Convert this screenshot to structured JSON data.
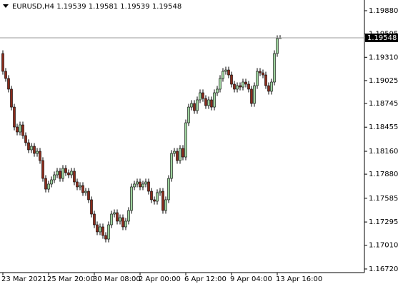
{
  "chart_data": {
    "type": "candlestick",
    "symbol": "EURUSD,H4",
    "up_color": "#9fd49f",
    "down_color": "#8b2a1a",
    "ylim": [
      1.16676,
      1.20011
    ],
    "yticks": [
      {
        "value": 1.1988,
        "label": "1.19880"
      },
      {
        "value": 1.19595,
        "label": "1.19595"
      },
      {
        "value": 1.1931,
        "label": "1.19310"
      },
      {
        "value": 1.19025,
        "label": "1.19025"
      },
      {
        "value": 1.18745,
        "label": "1.18745"
      },
      {
        "value": 1.18455,
        "label": "1.18455"
      },
      {
        "value": 1.1816,
        "label": "1.18160"
      },
      {
        "value": 1.1788,
        "label": "1.17880"
      },
      {
        "value": 1.17585,
        "label": "1.17585"
      },
      {
        "value": 1.17295,
        "label": "1.17295"
      },
      {
        "value": 1.1701,
        "label": "1.17010"
      },
      {
        "value": 1.1672,
        "label": "1.16720"
      }
    ],
    "xticks": [
      {
        "value": 0,
        "label": "23 Mar 2021"
      },
      {
        "value": 16,
        "label": "25 Mar 20:00"
      },
      {
        "value": 32,
        "label": "30 Mar 08:00"
      },
      {
        "value": 48,
        "label": "2 Apr 00:00"
      },
      {
        "value": 64,
        "label": "6 Apr 12:00"
      },
      {
        "value": 80,
        "label": "9 Apr 04:00"
      },
      {
        "value": 96,
        "label": "13 Apr 16:00"
      }
    ],
    "open": [
      1.19356,
      1.19138,
      1.19051,
      1.1892,
      1.18701,
      1.18457,
      1.18396,
      1.18483,
      1.18352,
      1.18265,
      1.18178,
      1.18221,
      1.18134,
      1.1816,
      1.18047,
      1.17828,
      1.17697,
      1.17759,
      1.17811,
      1.17872,
      1.17916,
      1.17828,
      1.17951,
      1.17898,
      1.17872,
      1.17916,
      1.17785,
      1.17724,
      1.17741,
      1.17654,
      1.17671,
      1.17567,
      1.17392,
      1.17261,
      1.17174,
      1.17235,
      1.1713,
      1.17086,
      1.17261,
      1.17392,
      1.17409,
      1.17305,
      1.17348,
      1.17235,
      1.17305,
      1.17436,
      1.17724,
      1.17759,
      1.17785,
      1.17724,
      1.17759,
      1.17785,
      1.17671,
      1.17567,
      1.17549,
      1.17654,
      1.17671,
      1.17436,
      1.17567,
      1.17828,
      1.18134,
      1.1816,
      1.18047,
      1.18195,
      1.1809,
      1.18509,
      1.18701,
      1.18745,
      1.18658,
      1.18789,
      1.18876,
      1.18806,
      1.18719,
      1.18789,
      1.18701,
      1.18876,
      1.1892,
      1.19051,
      1.19138,
      1.19155,
      1.19094,
      1.18981,
      1.1892,
      1.18963,
      1.18946,
      1.19007,
      1.18981,
      1.1892,
      1.18745,
      1.18963,
      1.19138,
      1.1912,
      1.19094,
      1.18963,
      1.18894,
      1.19007,
      1.19356,
      1.19539
    ],
    "high": [
      1.19396,
      1.19178,
      1.19091,
      1.1896,
      1.18741,
      1.18497,
      1.18523,
      1.18523,
      1.18392,
      1.18305,
      1.18261,
      1.18261,
      1.182,
      1.182,
      1.18087,
      1.17868,
      1.17799,
      1.17851,
      1.17912,
      1.17956,
      1.17956,
      1.17991,
      1.17991,
      1.17938,
      1.17956,
      1.17956,
      1.17825,
      1.17781,
      1.17781,
      1.17711,
      1.17711,
      1.17607,
      1.17432,
      1.17301,
      1.17275,
      1.17275,
      1.1717,
      1.17301,
      1.17432,
      1.17449,
      1.17449,
      1.17388,
      1.17388,
      1.17345,
      1.17476,
      1.17764,
      1.17799,
      1.17825,
      1.17825,
      1.17799,
      1.17825,
      1.17825,
      1.17711,
      1.17607,
      1.17694,
      1.17711,
      1.17711,
      1.17607,
      1.17868,
      1.18174,
      1.182,
      1.182,
      1.18235,
      1.18235,
      1.18549,
      1.18741,
      1.18785,
      1.18785,
      1.18829,
      1.18916,
      1.18916,
      1.18846,
      1.18829,
      1.18829,
      1.18916,
      1.1896,
      1.19091,
      1.19178,
      1.19195,
      1.19195,
      1.19134,
      1.19021,
      1.19003,
      1.19003,
      1.19047,
      1.19047,
      1.19021,
      1.1896,
      1.19003,
      1.19178,
      1.19178,
      1.1916,
      1.19134,
      1.19003,
      1.19047,
      1.19396,
      1.19579,
      1.19581
    ],
    "low": [
      1.19098,
      1.19011,
      1.1888,
      1.18661,
      1.18417,
      1.18356,
      1.18356,
      1.18312,
      1.18225,
      1.18138,
      1.18138,
      1.18094,
      1.18094,
      1.18007,
      1.17788,
      1.17657,
      1.17657,
      1.17719,
      1.17771,
      1.17832,
      1.17788,
      1.17788,
      1.17858,
      1.17832,
      1.17832,
      1.17745,
      1.17684,
      1.17684,
      1.17614,
      1.17614,
      1.17527,
      1.17352,
      1.17221,
      1.17134,
      1.17134,
      1.1709,
      1.17046,
      1.17046,
      1.17221,
      1.17352,
      1.17265,
      1.17265,
      1.17195,
      1.17195,
      1.17265,
      1.17396,
      1.17684,
      1.17719,
      1.17684,
      1.17684,
      1.17719,
      1.17631,
      1.17527,
      1.17509,
      1.17509,
      1.17614,
      1.17396,
      1.17396,
      1.17527,
      1.17788,
      1.18094,
      1.18007,
      1.18007,
      1.1805,
      1.1805,
      1.18469,
      1.18661,
      1.18618,
      1.18618,
      1.18749,
      1.18766,
      1.18679,
      1.18679,
      1.18661,
      1.18661,
      1.18836,
      1.1888,
      1.19011,
      1.19098,
      1.19054,
      1.18941,
      1.1888,
      1.1888,
      1.18906,
      1.18906,
      1.18941,
      1.1888,
      1.18705,
      1.18705,
      1.18923,
      1.1908,
      1.19054,
      1.18923,
      1.18854,
      1.18854,
      1.18967,
      1.19316,
      1.19539
    ],
    "close": [
      1.19138,
      1.19051,
      1.1892,
      1.18701,
      1.18457,
      1.18396,
      1.18483,
      1.18352,
      1.18265,
      1.18178,
      1.18221,
      1.18134,
      1.1816,
      1.18047,
      1.17828,
      1.17697,
      1.17759,
      1.17811,
      1.17872,
      1.17916,
      1.17828,
      1.17951,
      1.17898,
      1.17872,
      1.17916,
      1.17785,
      1.17724,
      1.17741,
      1.17654,
      1.17671,
      1.17567,
      1.17392,
      1.17261,
      1.17174,
      1.17235,
      1.1713,
      1.17086,
      1.17261,
      1.17392,
      1.17409,
      1.17305,
      1.17348,
      1.17235,
      1.17305,
      1.17436,
      1.17724,
      1.17759,
      1.17785,
      1.17724,
      1.17759,
      1.17785,
      1.17671,
      1.17567,
      1.17549,
      1.17654,
      1.17671,
      1.17436,
      1.17567,
      1.17828,
      1.18134,
      1.1816,
      1.18047,
      1.18195,
      1.1809,
      1.18509,
      1.18701,
      1.18745,
      1.18658,
      1.18789,
      1.18876,
      1.18806,
      1.18719,
      1.18789,
      1.18701,
      1.18876,
      1.1892,
      1.19051,
      1.19138,
      1.19155,
      1.19094,
      1.18981,
      1.1892,
      1.18963,
      1.18946,
      1.19007,
      1.18981,
      1.1892,
      1.18745,
      1.18963,
      1.19138,
      1.1912,
      1.19094,
      1.18963,
      1.18894,
      1.19007,
      1.19356,
      1.19539,
      1.19548
    ]
  }
}
